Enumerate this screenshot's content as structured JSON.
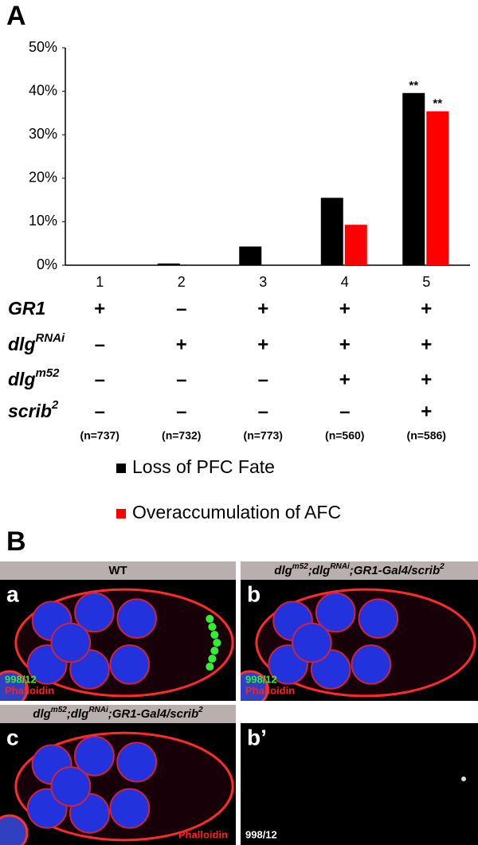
{
  "panel_a": {
    "label": "A"
  },
  "chart_data": {
    "type": "bar",
    "categories": [
      "1",
      "2",
      "3",
      "4",
      "5"
    ],
    "series": [
      {
        "name": "Loss of PFC Fate",
        "color": "#000000",
        "values": [
          0,
          0.4,
          4.3,
          15.5,
          39.6
        ]
      },
      {
        "name": "Overaccumulation of AFC",
        "color": "#ff0000",
        "values": [
          0,
          0,
          0,
          9.3,
          35.4
        ]
      }
    ],
    "annotations": [
      "**",
      "**"
    ],
    "ylim": [
      0,
      50
    ],
    "yticks": [
      {
        "value": 0,
        "label": "0%"
      },
      {
        "value": 10,
        "label": "10%"
      },
      {
        "value": 20,
        "label": "20%"
      },
      {
        "value": 30,
        "label": "30%"
      },
      {
        "value": 40,
        "label": "40%"
      },
      {
        "value": 50,
        "label": "50%"
      }
    ]
  },
  "genotypes": {
    "rows": [
      {
        "name": "GR1",
        "marks": [
          "+",
          "–",
          "+",
          "+",
          "+"
        ]
      },
      {
        "name": "dlg",
        "sup": "RNAi",
        "marks": [
          "–",
          "+",
          "+",
          "+",
          "+"
        ]
      },
      {
        "name": "dlg",
        "sup": "m52",
        "marks": [
          "–",
          "–",
          "–",
          "+",
          "+"
        ]
      },
      {
        "name": "scrib",
        "sup": "2",
        "marks": [
          "–",
          "–",
          "–",
          "–",
          "+"
        ]
      }
    ],
    "counts": [
      "(n=737)",
      "(n=732)",
      "(n=773)",
      "(n=560)",
      "(n=586)"
    ]
  },
  "panel_b": {
    "label": "B",
    "panels": [
      {
        "letter": "a",
        "header": [
          {
            "text": "WT"
          }
        ],
        "stains": [
          {
            "text": "998/12",
            "color": "#33ee33"
          },
          {
            "text": "Phalloidin",
            "color": "#ff2020"
          }
        ]
      },
      {
        "letter": "b",
        "header": [
          {
            "text": "dlg"
          },
          {
            "text": "m52",
            "sup": true
          },
          {
            "text": ";dlg"
          },
          {
            "text": "RNAi",
            "sup": true
          },
          {
            "text": ";GR1-Gal4/scrib"
          },
          {
            "text": "2",
            "sup": true
          }
        ],
        "stains": [
          {
            "text": "998/12",
            "color": "#33ee33"
          },
          {
            "text": "Phalloidin",
            "color": "#ff2020"
          }
        ]
      },
      {
        "letter": "c",
        "header": [
          {
            "text": "dlg"
          },
          {
            "text": "m52",
            "sup": true
          },
          {
            "text": ";dlg"
          },
          {
            "text": "RNAi",
            "sup": true
          },
          {
            "text": ";GR1-Gal4/scrib"
          },
          {
            "text": "2",
            "sup": true
          }
        ],
        "stains": [
          {
            "text": "Phalloidin",
            "color": "#ff2020"
          }
        ]
      },
      {
        "letter": "b’",
        "header": [],
        "stains": [
          {
            "text": "998/12",
            "color": "#ffffff"
          }
        ]
      }
    ]
  }
}
